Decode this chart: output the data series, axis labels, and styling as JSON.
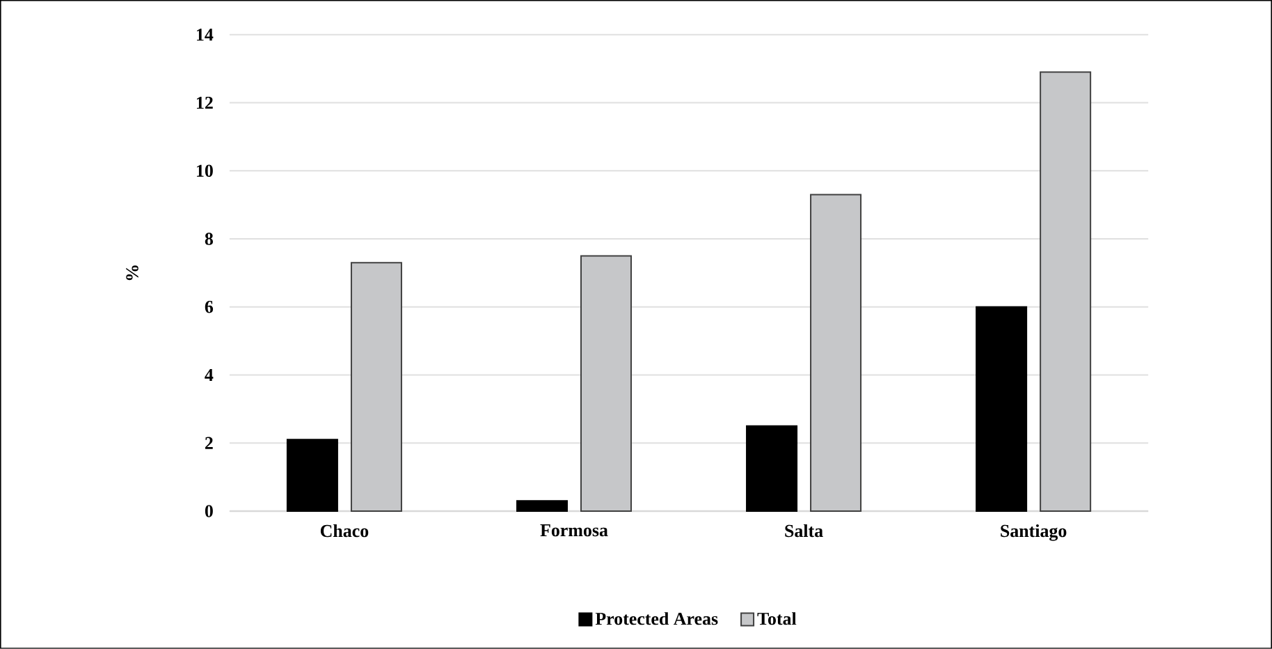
{
  "chart_data": {
    "type": "bar",
    "ylabel": "%",
    "categories": [
      "Chaco",
      "Formosa",
      "Salta",
      "Santiago"
    ],
    "series": [
      {
        "name": "Protected Areas",
        "color": "#000000",
        "values": [
          2.1,
          0.3,
          2.5,
          6.0
        ]
      },
      {
        "name": "Total",
        "color": "#c6c7c9",
        "values": [
          7.3,
          7.5,
          9.3,
          12.9
        ]
      }
    ],
    "ylim": [
      0,
      14
    ],
    "yticks": [
      0,
      2,
      4,
      6,
      8,
      10,
      12,
      14
    ],
    "grid": "y",
    "legend": "bottom"
  }
}
